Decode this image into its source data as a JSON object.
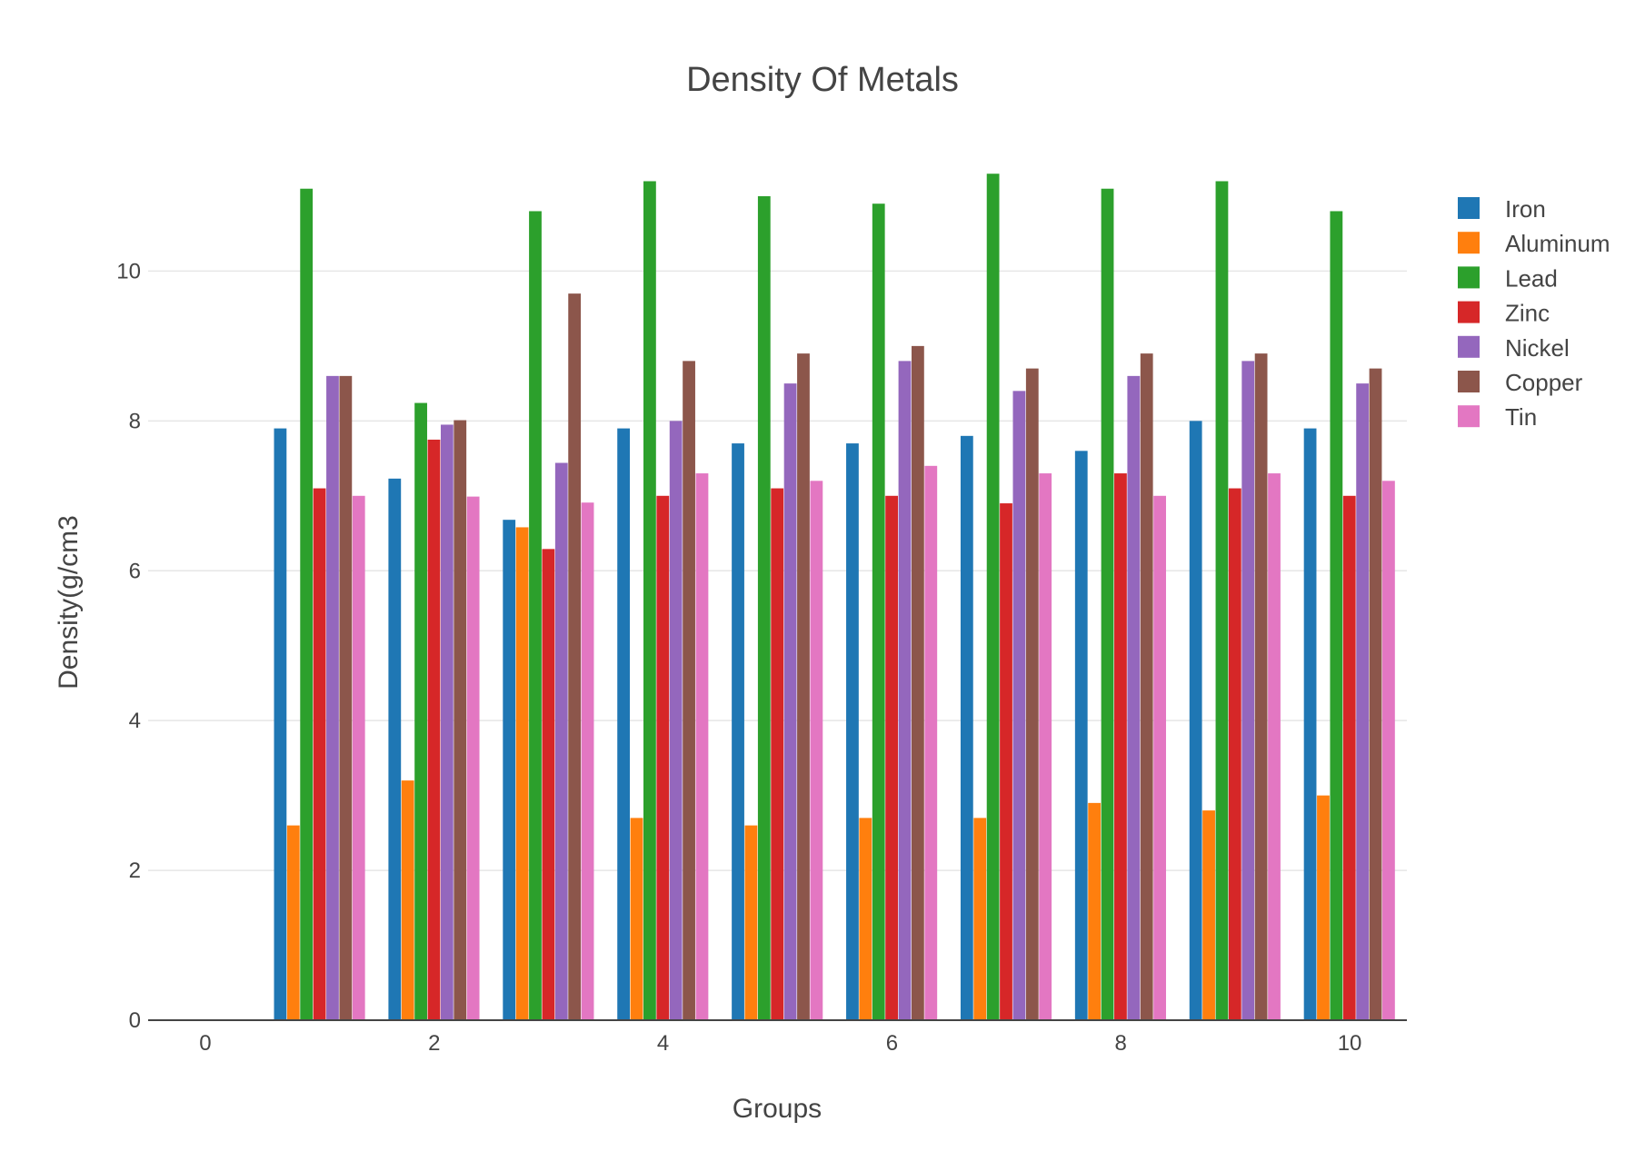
{
  "chart_data": {
    "type": "bar",
    "title": "Density Of Metals",
    "xlabel": "Groups",
    "ylabel": "Density(g/cm3",
    "x": [
      1,
      2,
      3,
      4,
      5,
      6,
      7,
      8,
      9,
      10
    ],
    "xlim": [
      -0.5,
      10.5
    ],
    "ylim": [
      0,
      11.8
    ],
    "xticks": [
      "0",
      "2",
      "4",
      "6",
      "8",
      "10"
    ],
    "xtick_values": [
      0,
      2,
      4,
      6,
      8,
      10
    ],
    "yticks": [
      "0",
      "2",
      "4",
      "6",
      "8",
      "10"
    ],
    "ytick_values": [
      0,
      2,
      4,
      6,
      8,
      10
    ],
    "grid": true,
    "legend_position": "top-right",
    "series": [
      {
        "name": "Iron",
        "color": "#1f77b4",
        "values": [
          7.9,
          7.23,
          6.68,
          7.9,
          7.7,
          7.7,
          7.8,
          7.6,
          8.0,
          7.9
        ]
      },
      {
        "name": "Aluminum",
        "color": "#ff7f0e",
        "values": [
          2.6,
          3.2,
          6.58,
          2.7,
          2.6,
          2.7,
          2.7,
          2.9,
          2.8,
          3.0
        ]
      },
      {
        "name": "Lead",
        "color": "#2ca02c",
        "values": [
          11.1,
          8.24,
          10.8,
          11.2,
          11.0,
          10.9,
          11.3,
          11.1,
          11.2,
          10.8
        ]
      },
      {
        "name": "Zinc",
        "color": "#d62728",
        "values": [
          7.1,
          7.75,
          6.29,
          7.0,
          7.1,
          7.0,
          6.9,
          7.3,
          7.1,
          7.0
        ]
      },
      {
        "name": "Nickel",
        "color": "#9467bd",
        "values": [
          8.6,
          7.95,
          7.44,
          8.0,
          8.5,
          8.8,
          8.4,
          8.6,
          8.8,
          8.5
        ]
      },
      {
        "name": "Copper",
        "color": "#8c564b",
        "values": [
          8.6,
          8.01,
          9.7,
          8.8,
          8.9,
          9.0,
          8.7,
          8.9,
          8.9,
          8.7
        ]
      },
      {
        "name": "Tin",
        "color": "#e377c2",
        "values": [
          7.0,
          6.99,
          6.91,
          7.3,
          7.2,
          7.4,
          7.3,
          7.0,
          7.3,
          7.2
        ]
      }
    ]
  }
}
